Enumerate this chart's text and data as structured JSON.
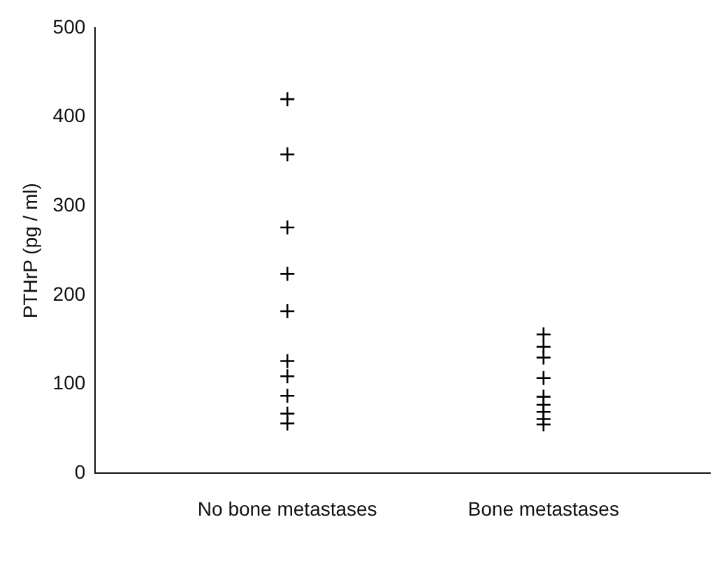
{
  "chart_data": {
    "type": "scatter",
    "ylabel": "PTHrP (pg / ml)",
    "categories": [
      "No bone metastases",
      "Bone metastases"
    ],
    "series": [
      {
        "color": "#000000",
        "x": [
          "No bone metastases",
          "No bone metastases",
          "No bone metastases",
          "No bone metastases",
          "No bone metastases",
          "No bone metastases",
          "No bone metastases",
          "No bone metastases",
          "No bone metastases",
          "No bone metastases",
          "Bone metastases",
          "Bone metastases",
          "Bone metastases",
          "Bone metastases",
          "Bone metastases",
          "Bone metastases",
          "Bone metastases",
          "Bone metastases",
          "Bone metastases"
        ],
        "values": [
          420,
          358,
          276,
          224,
          182,
          126,
          109,
          87,
          67,
          56,
          156,
          142,
          130,
          107,
          86,
          77,
          69,
          61,
          55
        ]
      }
    ],
    "ylim": [
      0,
      500
    ],
    "yticks": [
      0,
      100,
      200,
      300,
      400,
      500
    ],
    "grid": false,
    "legend": false,
    "marker": "cross"
  }
}
